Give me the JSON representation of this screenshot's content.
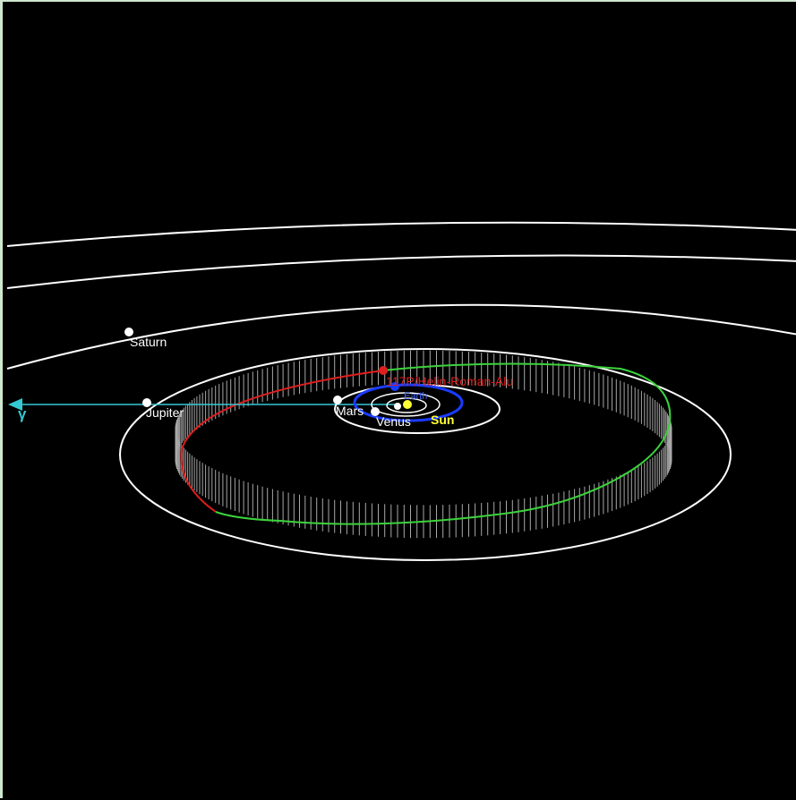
{
  "colors": {
    "background": "#000000",
    "planet_orbit": "#ffffff",
    "earth_orbit": "#1a3cff",
    "comet_above": "#3cd23c",
    "comet_below": "#e01e1e",
    "comet_fill": "#a8a8a8",
    "vernal_arrow": "#36c8d2",
    "sun": "#ffff33"
  },
  "labels": {
    "saturn": "Saturn",
    "jupiter": "Jupiter",
    "mars": "Mars",
    "venus": "Venus",
    "earth": "Earth",
    "sun": "Sun",
    "comet": "117P/Helin-Roman-Alu",
    "vernal_equinox": "γ"
  }
}
